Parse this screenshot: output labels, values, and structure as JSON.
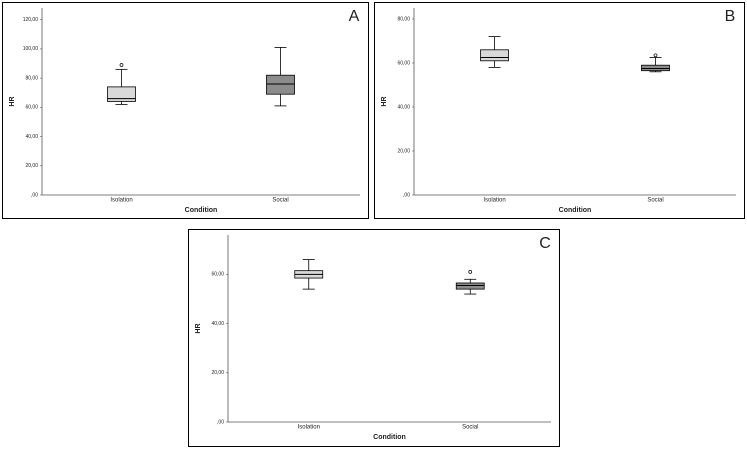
{
  "chart_data": [
    {
      "type": "box",
      "panel": "A",
      "x_label": "Condition",
      "y_label": "HR",
      "categories": [
        "Isolation",
        "Social"
      ],
      "colors": [
        "#d9d9d9",
        "#8c8c8c"
      ],
      "boxes": [
        {
          "min": 62,
          "q1": 64,
          "median": 66,
          "q3": 74,
          "max": 86,
          "outliers": [
            89
          ]
        },
        {
          "min": 61,
          "q1": 69,
          "median": 76,
          "q3": 82,
          "max": 101,
          "outliers": []
        }
      ],
      "ylim": [
        0,
        128
      ],
      "yticks": [
        {
          "value": 0,
          "label": ",00"
        },
        {
          "value": 20,
          "label": "20,00"
        },
        {
          "value": 40,
          "label": "40,00"
        },
        {
          "value": 60,
          "label": "60,00"
        },
        {
          "value": 80,
          "label": "80,00"
        },
        {
          "value": 100,
          "label": "100,00"
        },
        {
          "value": 120,
          "label": "120,00"
        }
      ]
    },
    {
      "type": "box",
      "panel": "B",
      "x_label": "Condition",
      "y_label": "HR",
      "categories": [
        "Isolation",
        "Social"
      ],
      "colors": [
        "#d9d9d9",
        "#8c8c8c"
      ],
      "boxes": [
        {
          "min": 58,
          "q1": 61,
          "median": 62.5,
          "q3": 66,
          "max": 72,
          "outliers": []
        },
        {
          "min": 56,
          "q1": 56.5,
          "median": 57.5,
          "q3": 59,
          "max": 62.5,
          "outliers": [
            63.5
          ]
        }
      ],
      "ylim": [
        0,
        85
      ],
      "yticks": [
        {
          "value": 0,
          "label": ",00"
        },
        {
          "value": 20,
          "label": "20,00"
        },
        {
          "value": 40,
          "label": "40,00"
        },
        {
          "value": 60,
          "label": "60,00"
        },
        {
          "value": 80,
          "label": "80,00"
        }
      ]
    },
    {
      "type": "box",
      "panel": "C",
      "x_label": "Condition",
      "y_label": "HR",
      "categories": [
        "Isolation",
        "Social"
      ],
      "colors": [
        "#d9d9d9",
        "#8c8c8c"
      ],
      "boxes": [
        {
          "min": 54,
          "q1": 58.5,
          "median": 60,
          "q3": 61.5,
          "max": 66,
          "outliers": []
        },
        {
          "min": 52,
          "q1": 54,
          "median": 55.5,
          "q3": 56.5,
          "max": 58,
          "outliers": [
            61
          ]
        }
      ],
      "ylim": [
        0,
        76
      ],
      "yticks": [
        {
          "value": 0,
          "label": ",00"
        },
        {
          "value": 20,
          "label": "20,00"
        },
        {
          "value": 40,
          "label": "40,00"
        },
        {
          "value": 60,
          "label": "60,00"
        }
      ]
    }
  ]
}
